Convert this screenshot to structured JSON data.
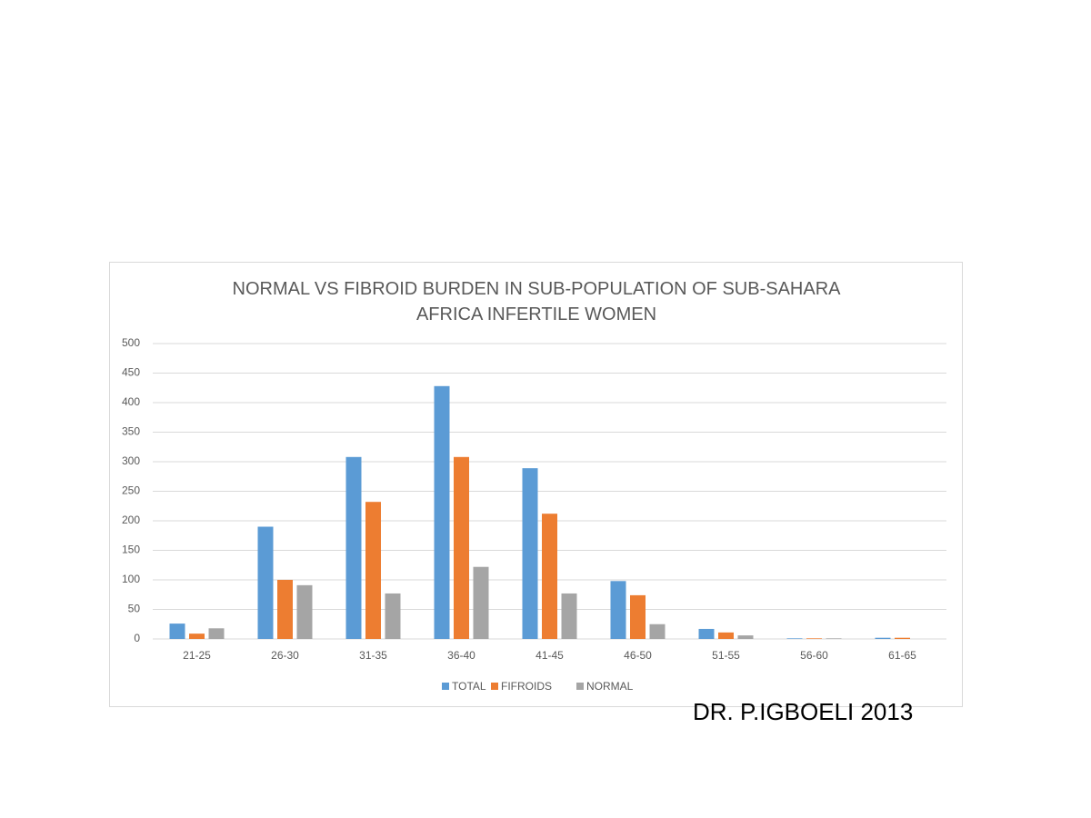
{
  "chart_data": {
    "type": "bar",
    "title": "NORMAL VS FIBROID BURDEN IN SUB-POPULATION OF SUB-SAHARA AFRICA INFERTILE WOMEN",
    "annotation": "DR. P.IGBOELI 2013",
    "categories": [
      "21-25",
      "26-30",
      "31-35",
      "36-40",
      "41-45",
      "46-50",
      "51-55",
      "56-60",
      "61-65"
    ],
    "series": [
      {
        "name": "TOTAL",
        "color": "#5b9bd5",
        "values": [
          26,
          190,
          308,
          428,
          289,
          98,
          17,
          1,
          2
        ]
      },
      {
        "name": "FIFROIDS",
        "color": "#ed7d31",
        "values": [
          9,
          100,
          232,
          308,
          212,
          74,
          11,
          1,
          2
        ]
      },
      {
        "name": "NORMAL",
        "color": "#a5a5a5",
        "values": [
          18,
          91,
          77,
          122,
          77,
          25,
          6,
          1,
          0
        ]
      }
    ],
    "ylim": [
      0,
      500
    ],
    "yticks": [
      0,
      50,
      100,
      150,
      200,
      250,
      300,
      350,
      400,
      450,
      500
    ],
    "grid": true,
    "legend": "bottom"
  }
}
